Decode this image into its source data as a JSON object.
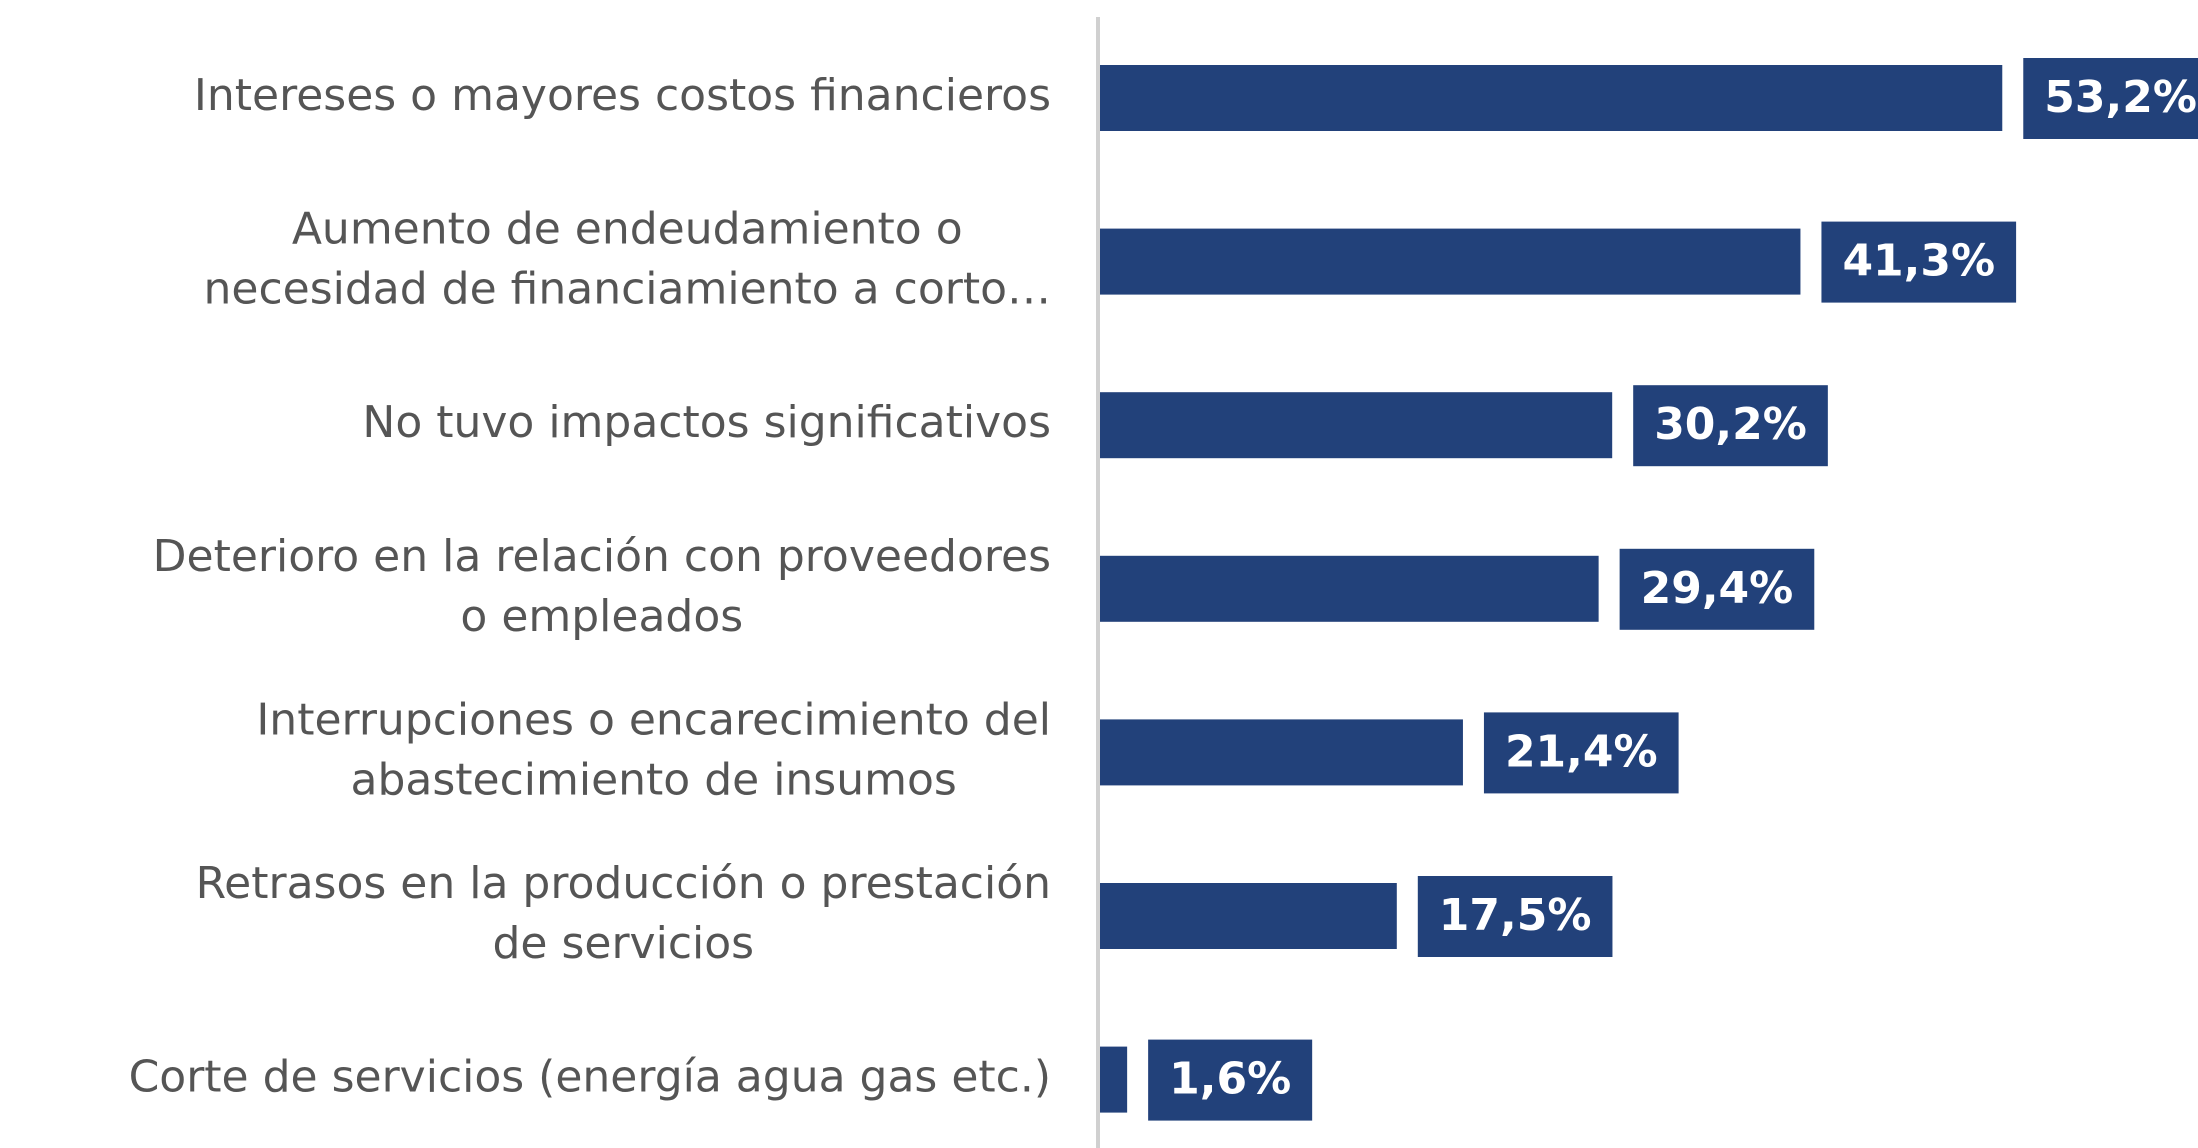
{
  "chart_data": {
    "type": "bar",
    "orientation": "horizontal",
    "color": "#22417a",
    "categories": [
      [
        "Intereses o mayores costos financieros"
      ],
      [
        "Aumento de endeudamiento o",
        "necesidad de financiamiento a corto…"
      ],
      [
        "No tuvo impactos significativos"
      ],
      [
        "Deterioro en la relación con proveedores",
        "o empleados"
      ],
      [
        "Interrupciones o encarecimiento del",
        "abastecimiento de insumos"
      ],
      [
        "Retrasos en la producción o prestación",
        "de servicios"
      ],
      [
        "Corte de servicios (energía agua gas etc.)"
      ]
    ],
    "values": [
      53.2,
      41.3,
      30.2,
      29.4,
      21.4,
      17.5,
      1.6
    ],
    "value_labels": [
      "53,2%",
      "41,3%",
      "30,2%",
      "29,4%",
      "21,4%",
      "17,5%",
      "1,6%"
    ]
  }
}
